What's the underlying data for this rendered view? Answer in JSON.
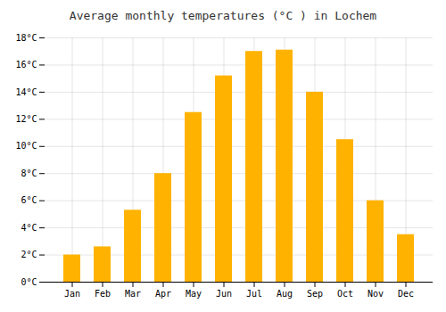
{
  "chart_data": {
    "type": "bar",
    "title": "Average monthly temperatures (°C ) in Lochem",
    "categories": [
      "Jan",
      "Feb",
      "Mar",
      "Apr",
      "May",
      "Jun",
      "Jul",
      "Aug",
      "Sep",
      "Oct",
      "Nov",
      "Dec"
    ],
    "values": [
      2.0,
      2.6,
      5.3,
      8.0,
      12.5,
      15.2,
      17.0,
      17.1,
      14.0,
      10.5,
      6.0,
      3.5
    ],
    "color": "#FFB300",
    "ylim": [
      0,
      18
    ],
    "yticks": [
      {
        "value": 0,
        "label": "0°C"
      },
      {
        "value": 2,
        "label": "2°C"
      },
      {
        "value": 4,
        "label": "4°C"
      },
      {
        "value": 6,
        "label": "6°C"
      },
      {
        "value": 8,
        "label": "8°C"
      },
      {
        "value": 10,
        "label": "10°C"
      },
      {
        "value": 12,
        "label": "12°C"
      },
      {
        "value": 14,
        "label": "14°C"
      },
      {
        "value": 16,
        "label": "16°C"
      },
      {
        "value": 18,
        "label": "18°C"
      }
    ],
    "grid": true
  }
}
